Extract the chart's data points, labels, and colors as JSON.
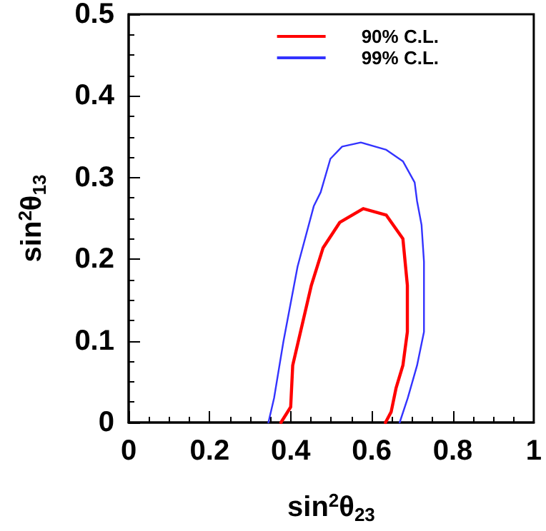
{
  "chart_data": {
    "type": "line",
    "xlabel": "sin$^{2}$θ$_{23}$",
    "ylabel": "sin$^{2}$θ$_{13}$",
    "xlim": [
      0,
      1
    ],
    "ylim": [
      0,
      0.5
    ],
    "xticks": [
      0,
      0.2,
      0.4,
      0.6,
      0.8,
      1
    ],
    "yticks": [
      0,
      0.1,
      0.2,
      0.3,
      0.4,
      0.5
    ],
    "grid": false,
    "legend": "top right",
    "marker": "none",
    "line_style": "solid",
    "series": [
      {
        "name": "90% C.L.",
        "color": "#ff0000",
        "x": [
          0.376,
          0.4,
          0.405,
          0.451,
          0.48,
          0.521,
          0.579,
          0.636,
          0.677,
          0.688,
          0.688,
          0.677,
          0.66,
          0.648,
          0.634
        ],
        "values": [
          0,
          0.019,
          0.07,
          0.168,
          0.214,
          0.245,
          0.262,
          0.254,
          0.225,
          0.168,
          0.111,
          0.07,
          0.042,
          0.013,
          0
        ]
      },
      {
        "name": "99% C.L.",
        "color": "#3333ff",
        "x": [
          0.345,
          0.359,
          0.382,
          0.417,
          0.457,
          0.474,
          0.498,
          0.527,
          0.573,
          0.636,
          0.677,
          0.706,
          0.712,
          0.723,
          0.729,
          0.729,
          0.712,
          0.689,
          0.669
        ],
        "values": [
          0,
          0.03,
          0.099,
          0.191,
          0.265,
          0.282,
          0.323,
          0.338,
          0.343,
          0.334,
          0.32,
          0.294,
          0.271,
          0.242,
          0.197,
          0.111,
          0.07,
          0.03,
          0
        ]
      }
    ]
  }
}
